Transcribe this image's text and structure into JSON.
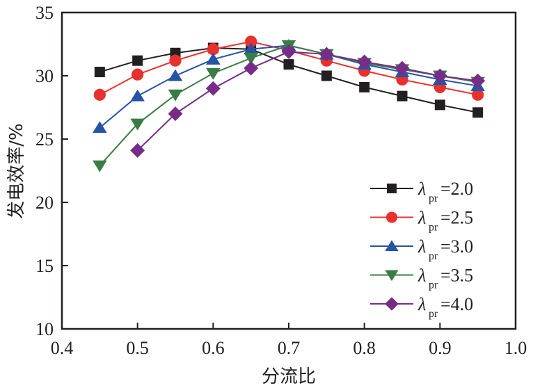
{
  "chart_data": {
    "type": "line",
    "title": "",
    "xlabel": "分流比",
    "ylabel": "发电效率/%",
    "xlim": [
      0.4,
      1.0
    ],
    "ylim": [
      10,
      35
    ],
    "xticks": [
      "0.4",
      "0.5",
      "0.6",
      "0.7",
      "0.8",
      "0.9",
      "1.0"
    ],
    "yticks": [
      "10",
      "15",
      "20",
      "25",
      "30",
      "35"
    ],
    "grid": false,
    "legend_position": "bottom-right",
    "legend_symbol": "λ",
    "legend_subscript": "pr",
    "series": [
      {
        "name": "=2.0",
        "color": "#231f20",
        "marker": "square",
        "x": [
          0.45,
          0.5,
          0.55,
          0.6,
          0.65,
          0.7,
          0.75,
          0.8,
          0.85,
          0.9,
          0.95
        ],
        "y": [
          30.3,
          31.2,
          31.8,
          32.2,
          32.1,
          30.9,
          30.0,
          29.1,
          28.4,
          27.7,
          27.1
        ]
      },
      {
        "name": "=2.5",
        "color": "#e8312f",
        "marker": "circle",
        "x": [
          0.45,
          0.5,
          0.55,
          0.6,
          0.65,
          0.7,
          0.75,
          0.8,
          0.85,
          0.9,
          0.95
        ],
        "y": [
          28.5,
          30.1,
          31.2,
          32.1,
          32.7,
          32.0,
          31.2,
          30.4,
          29.7,
          29.1,
          28.5
        ]
      },
      {
        "name": "=3.0",
        "color": "#2553a5",
        "marker": "triangle-up",
        "x": [
          0.45,
          0.5,
          0.55,
          0.6,
          0.65,
          0.7,
          0.75,
          0.8,
          0.85,
          0.9,
          0.95
        ],
        "y": [
          25.9,
          28.4,
          30.0,
          31.3,
          32.1,
          32.4,
          31.7,
          30.9,
          30.3,
          29.7,
          29.2
        ]
      },
      {
        "name": "=3.5",
        "color": "#3a7d44",
        "marker": "triangle-down",
        "x": [
          0.45,
          0.5,
          0.55,
          0.6,
          0.65,
          0.7,
          0.75,
          0.8,
          0.85,
          0.9,
          0.95
        ],
        "y": [
          22.9,
          26.2,
          28.5,
          30.2,
          31.4,
          32.4,
          31.7,
          31.0,
          30.5,
          30.0,
          29.5
        ]
      },
      {
        "name": "=4.0",
        "color": "#772d87",
        "marker": "diamond",
        "x": [
          0.5,
          0.55,
          0.6,
          0.65,
          0.7,
          0.75,
          0.8,
          0.85,
          0.9,
          0.95
        ],
        "y": [
          24.1,
          27.0,
          29.0,
          30.6,
          31.9,
          31.7,
          31.1,
          30.6,
          30.0,
          29.6
        ]
      }
    ]
  }
}
